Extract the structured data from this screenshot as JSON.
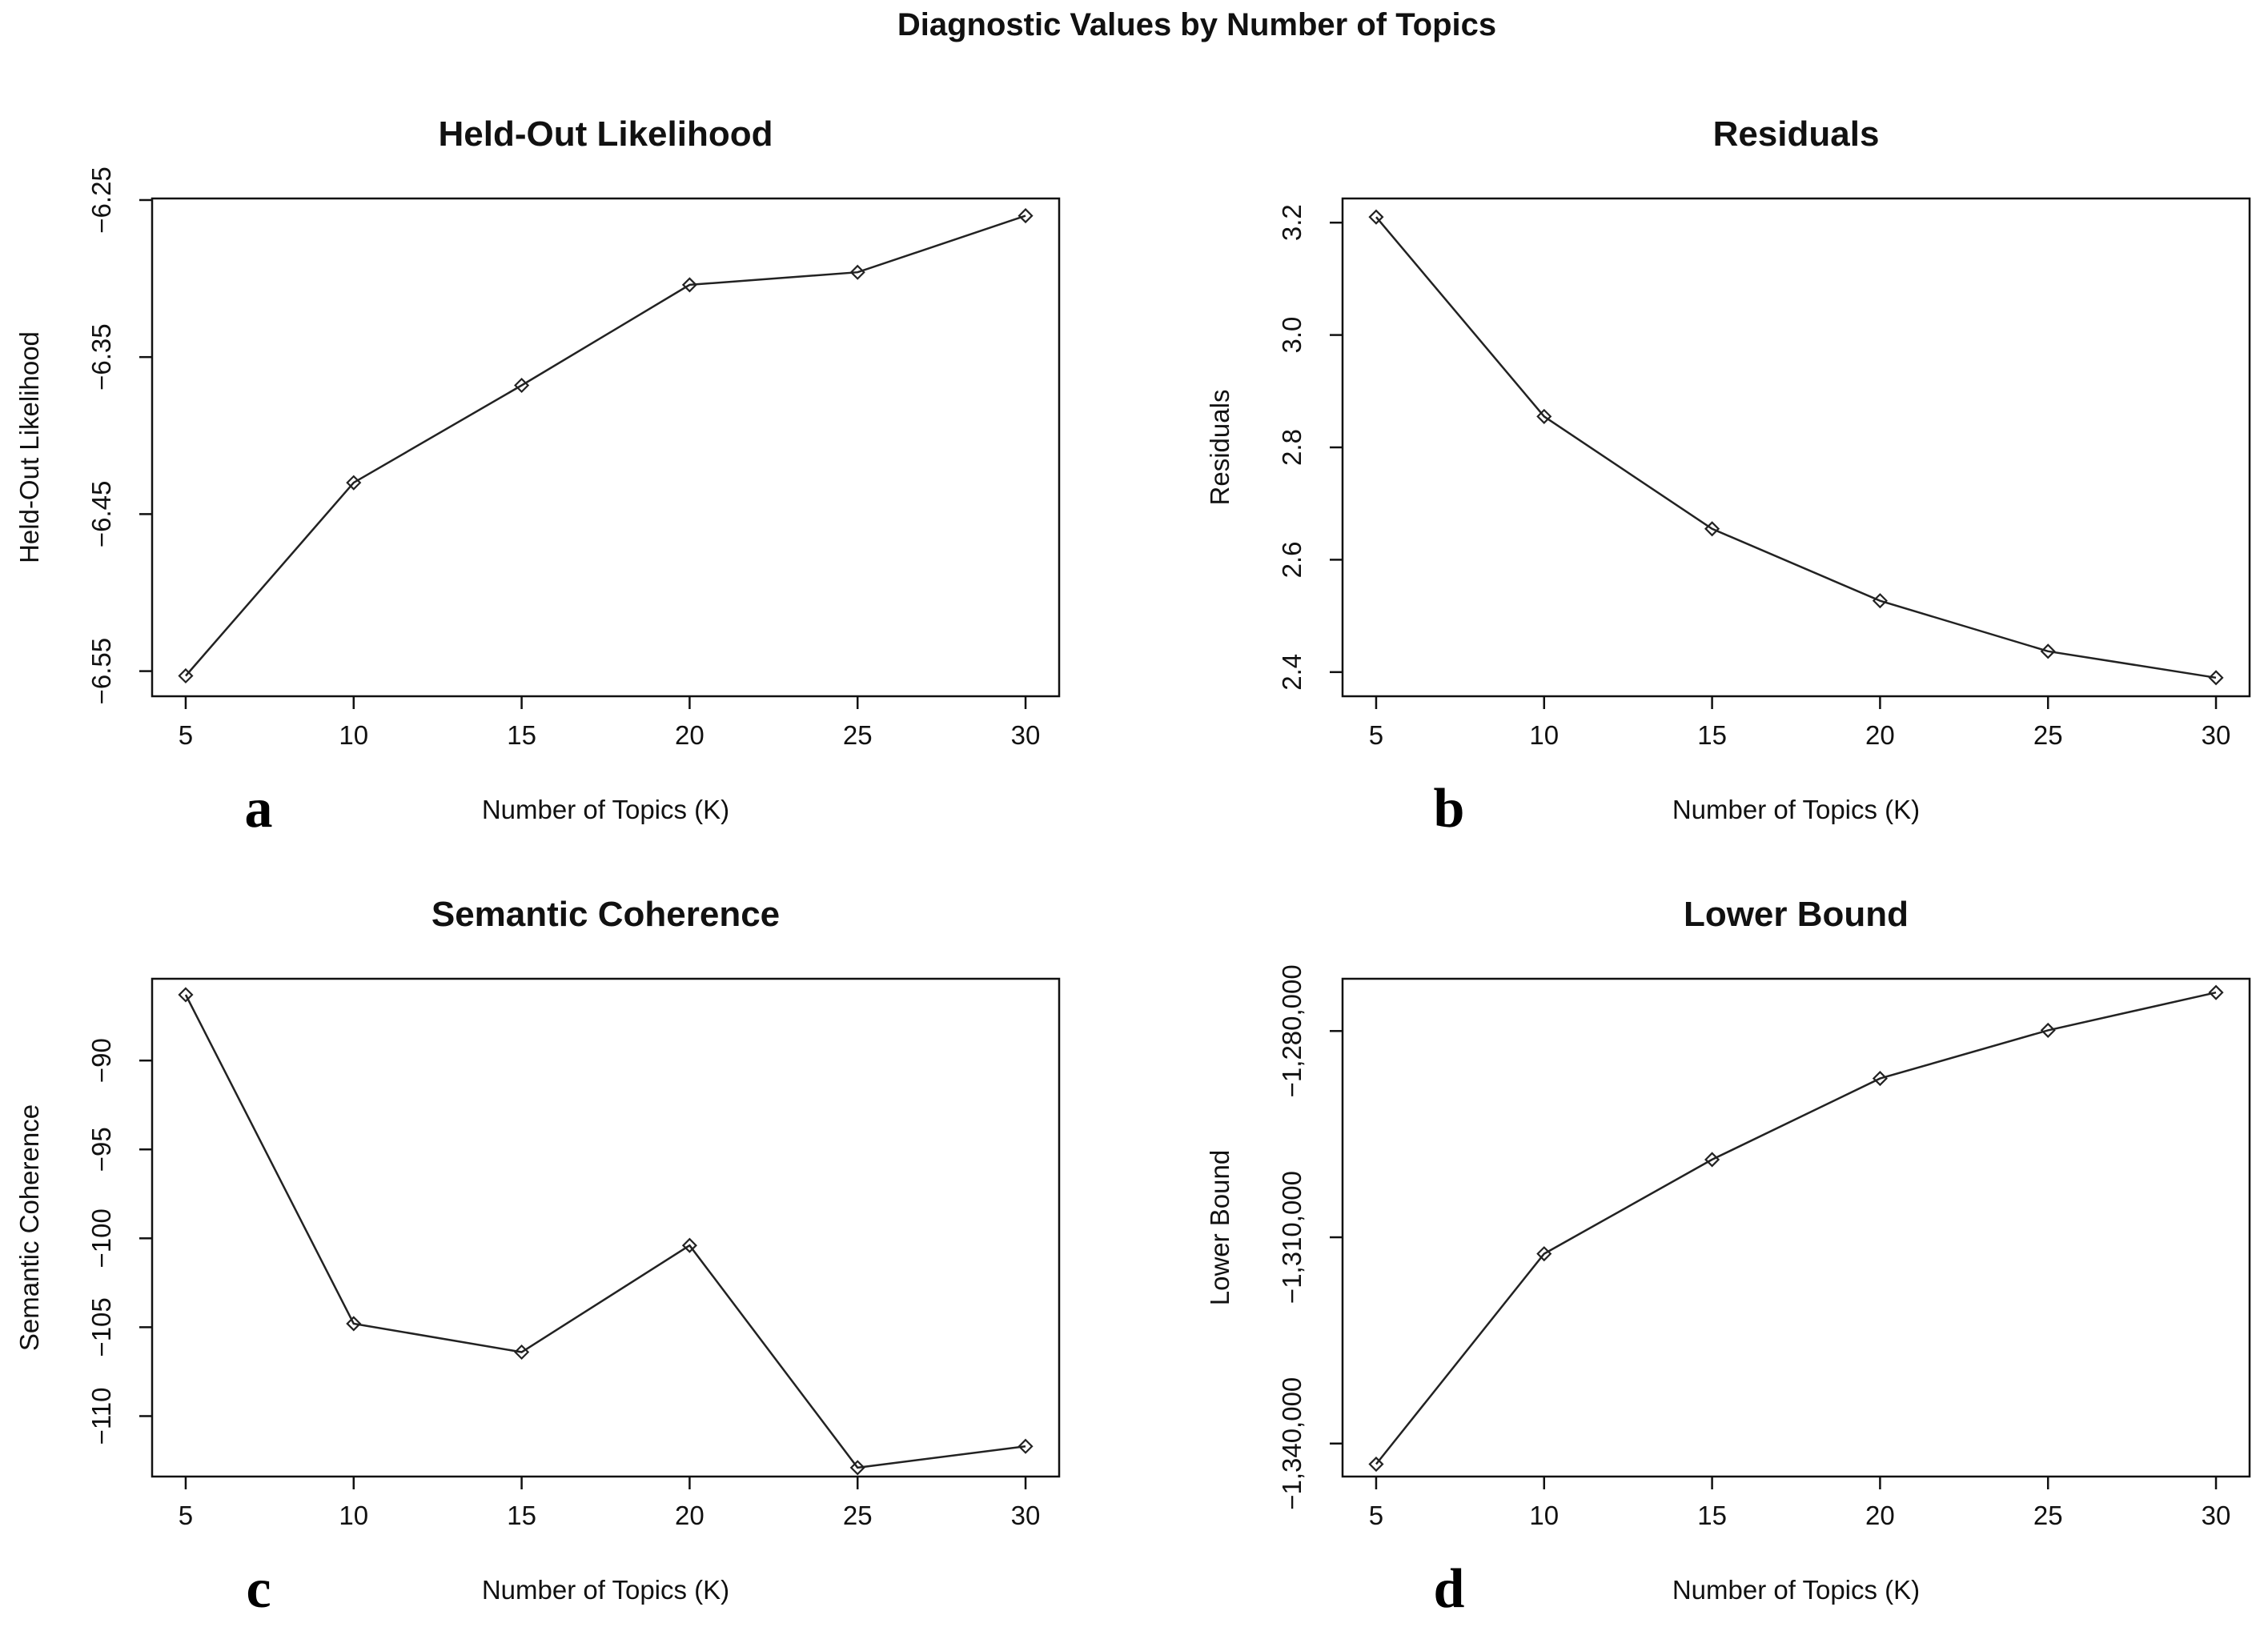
{
  "figure_title": "Diagnostic Values by Number of Topics",
  "chart_data": [
    {
      "type": "line",
      "panel_letter": "a",
      "title": "Held-Out Likelihood",
      "xlabel": "Number of Topics (K)",
      "ylabel": "Held-Out Likelihood",
      "x": [
        5,
        10,
        15,
        20,
        25,
        30
      ],
      "y": [
        -6.553,
        -6.43,
        -6.368,
        -6.304,
        -6.296,
        -6.26
      ],
      "xticks": [
        5,
        10,
        15,
        20,
        25,
        30
      ],
      "yticks": [
        -6.55,
        -6.45,
        -6.35,
        -6.25
      ],
      "ytick_labels": [
        "-6.55",
        "-6.45",
        "-6.35",
        "-6.25"
      ],
      "xlim": [
        4.0,
        31.0
      ],
      "ylim": [
        -6.566,
        -6.249
      ]
    },
    {
      "type": "line",
      "panel_letter": "b",
      "title": "Residuals",
      "xlabel": "Number of Topics (K)",
      "ylabel": "Residuals",
      "x": [
        5,
        10,
        15,
        20,
        25,
        30
      ],
      "y": [
        3.21,
        2.855,
        2.655,
        2.527,
        2.437,
        2.39
      ],
      "xticks": [
        5,
        10,
        15,
        20,
        25,
        30
      ],
      "yticks": [
        2.4,
        2.6,
        2.8,
        3.0,
        3.2
      ],
      "ytick_labels": [
        "2.4",
        "2.6",
        "2.8",
        "3.0",
        "3.2"
      ],
      "xlim": [
        4.0,
        31.0
      ],
      "ylim": [
        2.357,
        3.243
      ]
    },
    {
      "type": "line",
      "panel_letter": "c",
      "title": "Semantic Coherence",
      "xlabel": "Number of Topics (K)",
      "ylabel": "Semantic Coherence",
      "x": [
        5,
        10,
        15,
        20,
        25,
        30
      ],
      "y": [
        -86.3,
        -104.8,
        -106.4,
        -100.4,
        -112.9,
        -111.7
      ],
      "xticks": [
        5,
        10,
        15,
        20,
        25,
        30
      ],
      "yticks": [
        -90,
        -95,
        -100,
        -105,
        -110
      ],
      "ytick_labels": [
        "-90",
        "-95",
        "-100",
        "-105",
        "-110"
      ],
      "xlim": [
        4.0,
        31.0
      ],
      "ylim": [
        -113.4,
        -85.4
      ]
    },
    {
      "type": "line",
      "panel_letter": "d",
      "title": "Lower Bound",
      "xlabel": "Number of Topics (K)",
      "ylabel": "Lower Bound",
      "x": [
        5,
        10,
        15,
        20,
        25,
        30
      ],
      "y": [
        -1343000,
        -1312400,
        -1298700,
        -1286900,
        -1279900,
        -1274400
      ],
      "xticks": [
        5,
        10,
        15,
        20,
        25,
        30
      ],
      "yticks": [
        -1340000,
        -1310000,
        -1280000
      ],
      "ytick_labels": [
        "-1,340,000",
        "-1,310,000",
        "-1,280,000"
      ],
      "xlim": [
        4.0,
        31.0
      ],
      "ylim": [
        -1344800,
        -1272400
      ]
    }
  ]
}
